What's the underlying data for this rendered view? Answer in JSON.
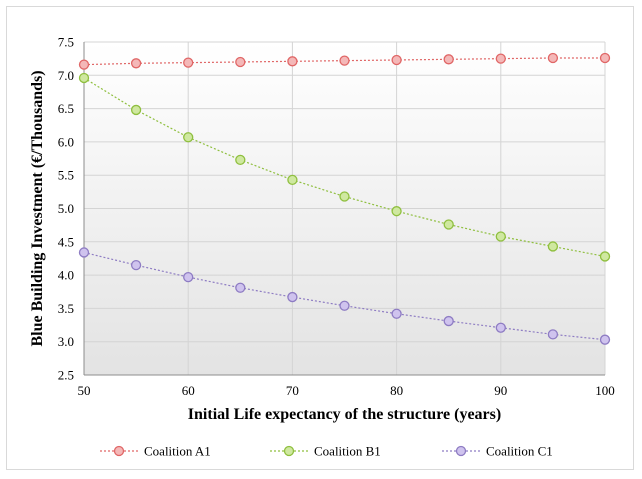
{
  "chart_data": {
    "type": "line",
    "title": "",
    "xlabel": "Initial Life expectancy of the structure (years)",
    "ylabel": "Blue Building Investment (€/Thousands)",
    "xlim": [
      50,
      100
    ],
    "ylim": [
      2.5,
      7.5
    ],
    "x_ticks": [
      "50",
      "60",
      "70",
      "80",
      "90",
      "100"
    ],
    "y_ticks": [
      "2.5",
      "3.0",
      "3.5",
      "4.0",
      "4.5",
      "5.0",
      "5.5",
      "6.0",
      "6.5",
      "7.0",
      "7.5"
    ],
    "grid": true,
    "legend_position": "bottom",
    "x": [
      50,
      55,
      60,
      65,
      70,
      75,
      80,
      85,
      90,
      95,
      100
    ],
    "series": [
      {
        "name": "Coalition A1",
        "color": "#e06666",
        "fill": "#f4b8b8",
        "values": [
          7.16,
          7.18,
          7.19,
          7.2,
          7.21,
          7.22,
          7.23,
          7.24,
          7.25,
          7.26,
          7.26
        ]
      },
      {
        "name": "Coalition B1",
        "color": "#8fbf3f",
        "fill": "#cfe8a0",
        "values": [
          6.96,
          6.48,
          6.07,
          5.73,
          5.43,
          5.18,
          4.96,
          4.76,
          4.58,
          4.43,
          4.28
        ]
      },
      {
        "name": "Coalition C1",
        "color": "#8e7cc3",
        "fill": "#cfc3ee",
        "values": [
          4.34,
          4.15,
          3.97,
          3.81,
          3.67,
          3.54,
          3.42,
          3.31,
          3.21,
          3.11,
          3.03
        ]
      }
    ]
  }
}
